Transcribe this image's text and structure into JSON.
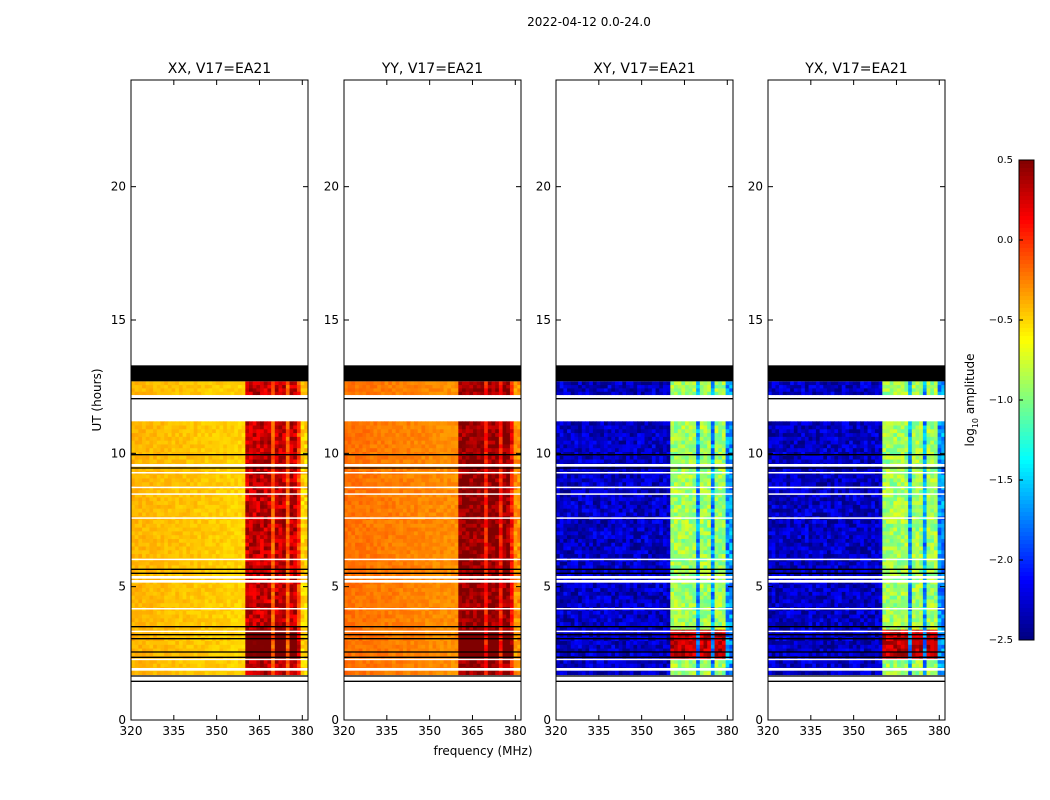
{
  "figure": {
    "suptitle": "2022-04-12 0.0-24.0",
    "xlabel": "frequency (MHz)",
    "ylabel": "UT (hours)"
  },
  "chart_data": {
    "type": "heatmap",
    "title": "2022-04-12 0.0-24.0",
    "xlabel": "frequency (MHz)",
    "ylabel": "UT (hours)",
    "xlim": [
      320,
      382
    ],
    "ylim": [
      0,
      24
    ],
    "xticks": [
      320,
      335,
      350,
      365,
      380
    ],
    "yticks": [
      0,
      5,
      10,
      15,
      20
    ],
    "rfi_channels_mhz": [
      362.5,
      367.5,
      372.5,
      377.5
    ],
    "data_blocks_hours": [
      [
        1.7,
        11.2
      ],
      [
        12.2,
        12.7
      ]
    ],
    "flagged_block_hours": [
      12.7,
      13.3
    ],
    "panels": [
      {
        "title": "XX, V17=EA21",
        "pol": "XX",
        "base_level": -0.4,
        "rfi_level": 0.3
      },
      {
        "title": "YY, V17=EA21",
        "pol": "YY",
        "base_level": -0.2,
        "rfi_level": 0.45
      },
      {
        "title": "XY, V17=EA21",
        "pol": "XY",
        "base_level": -2.3,
        "rfi_level": -0.9
      },
      {
        "title": "YX, V17=EA21",
        "pol": "YX",
        "base_level": -2.3,
        "rfi_level": -0.9
      }
    ],
    "colorbar": {
      "label": "log10 amplitude",
      "label_main": "log",
      "label_sub": "10",
      "label_rest": " amplitude",
      "range": [
        -2.5,
        0.5
      ],
      "ticks": [
        "0.5",
        "0.0",
        "−0.5",
        "−1.0",
        "−1.5",
        "−2.0",
        "−2.5"
      ],
      "tick_values": [
        0.5,
        0.0,
        -0.5,
        -1.0,
        -1.5,
        -2.0,
        -2.5
      ],
      "colormap": "jet"
    }
  }
}
